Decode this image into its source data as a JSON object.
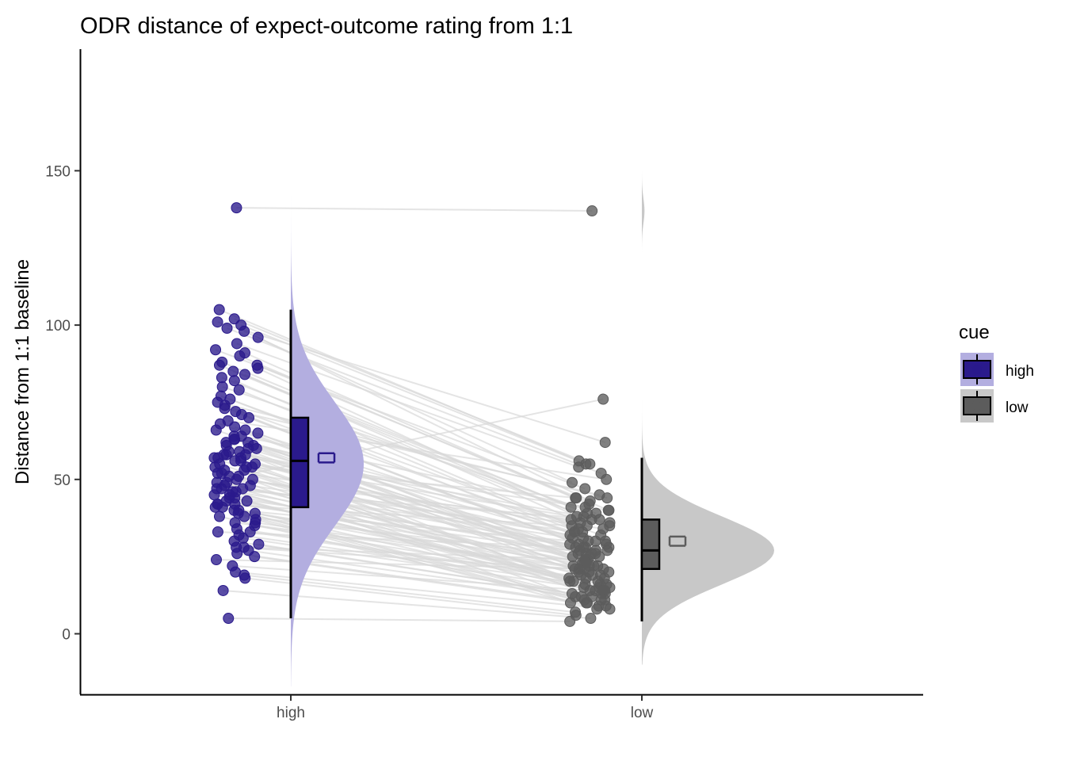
{
  "chart_data": {
    "type": "raincloud",
    "title": "ODR distance of expect-outcome rating from 1:1",
    "xlabel": "",
    "ylabel": "Distance from 1:1 baseline",
    "categories": [
      "high",
      "low"
    ],
    "ylim": [
      -19,
      188
    ],
    "yticks": [
      0,
      50,
      100,
      150
    ],
    "grid": false,
    "legend": {
      "title": "cue",
      "position": "right",
      "entries": [
        "high",
        "low"
      ]
    },
    "colors": {
      "high": "#2a1a8c",
      "high_cloud": "#b3aee0",
      "low": "#5c5c5c",
      "low_cloud": "#c8c8c8",
      "pair_line": "#d9d9d9"
    },
    "series": [
      {
        "name": "high",
        "box": {
          "min": 5,
          "q1": 41,
          "median": 56,
          "q3": 70,
          "max": 105
        },
        "mean": 57,
        "mean_ci": [
          55.5,
          58.5
        ],
        "density_range": [
          -17,
          161
        ],
        "density_mode": 55,
        "density_sd": 20
      },
      {
        "name": "low",
        "box": {
          "min": 4,
          "q1": 21,
          "median": 27,
          "q3": 37,
          "max": 57
        },
        "mean": 30,
        "mean_ci": [
          28.5,
          31.5
        ],
        "density_range": [
          -10,
          150
        ],
        "density_mode": 27,
        "density_sd": 11
      }
    ],
    "pairs": [
      [
        138,
        137
      ],
      [
        105,
        56
      ],
      [
        102,
        55
      ],
      [
        101,
        62
      ],
      [
        100,
        55
      ],
      [
        99,
        52
      ],
      [
        98,
        49
      ],
      [
        94,
        54
      ],
      [
        91,
        44
      ],
      [
        90,
        42
      ],
      [
        88,
        41
      ],
      [
        87,
        40
      ],
      [
        87,
        39
      ],
      [
        86,
        38
      ],
      [
        85,
        37
      ],
      [
        84,
        36
      ],
      [
        83,
        35
      ],
      [
        82,
        34
      ],
      [
        79,
        33
      ],
      [
        77,
        32
      ],
      [
        76,
        31
      ],
      [
        75,
        44
      ],
      [
        74,
        30
      ],
      [
        72,
        29
      ],
      [
        71,
        28
      ],
      [
        70,
        27
      ],
      [
        68,
        26
      ],
      [
        67,
        25
      ],
      [
        66,
        24
      ],
      [
        66,
        30
      ],
      [
        65,
        23
      ],
      [
        64,
        22
      ],
      [
        63,
        21
      ],
      [
        63,
        35
      ],
      [
        62,
        20
      ],
      [
        62,
        33
      ],
      [
        61,
        19
      ],
      [
        61,
        28
      ],
      [
        60,
        18
      ],
      [
        60,
        26
      ],
      [
        59,
        17
      ],
      [
        59,
        38
      ],
      [
        58,
        16
      ],
      [
        58,
        25
      ],
      [
        58,
        40
      ],
      [
        57,
        15
      ],
      [
        57,
        24
      ],
      [
        57,
        36
      ],
      [
        56,
        14
      ],
      [
        56,
        30
      ],
      [
        55,
        13
      ],
      [
        55,
        27
      ],
      [
        54,
        12
      ],
      [
        54,
        22
      ],
      [
        53,
        11
      ],
      [
        53,
        34
      ],
      [
        52,
        10
      ],
      [
        52,
        29
      ],
      [
        51,
        76
      ],
      [
        50,
        21
      ],
      [
        50,
        37
      ],
      [
        49,
        20
      ],
      [
        49,
        28
      ],
      [
        48,
        19
      ],
      [
        48,
        33
      ],
      [
        47,
        18
      ],
      [
        47,
        31
      ],
      [
        46,
        17
      ],
      [
        46,
        26
      ],
      [
        45,
        16
      ],
      [
        44,
        15
      ],
      [
        44,
        27
      ],
      [
        43,
        14
      ],
      [
        43,
        23
      ],
      [
        42,
        13
      ],
      [
        42,
        35
      ],
      [
        41,
        12
      ],
      [
        41,
        22
      ],
      [
        40,
        11
      ],
      [
        40,
        29
      ],
      [
        39,
        10
      ],
      [
        38,
        9
      ],
      [
        38,
        25
      ],
      [
        37,
        8
      ],
      [
        36,
        20
      ],
      [
        35,
        18
      ],
      [
        34,
        17
      ],
      [
        33,
        16
      ],
      [
        32,
        15
      ],
      [
        31,
        14
      ],
      [
        30,
        13
      ],
      [
        29,
        12
      ],
      [
        28,
        24
      ],
      [
        27,
        11
      ],
      [
        26,
        10
      ],
      [
        25,
        9
      ],
      [
        24,
        21
      ],
      [
        20,
        8
      ],
      [
        19,
        7
      ],
      [
        18,
        6
      ],
      [
        14,
        5
      ],
      [
        5,
        4
      ],
      [
        96,
        43
      ],
      [
        92,
        47
      ],
      [
        80,
        39
      ],
      [
        73,
        45
      ],
      [
        69,
        50
      ],
      [
        64,
        41
      ],
      [
        54,
        44
      ],
      [
        45,
        23
      ],
      [
        39,
        19
      ],
      [
        33,
        28
      ],
      [
        28,
        21
      ],
      [
        22,
        14
      ],
      [
        51,
        32
      ],
      [
        47,
        37
      ],
      [
        42,
        26
      ],
      [
        36,
        22
      ]
    ]
  }
}
